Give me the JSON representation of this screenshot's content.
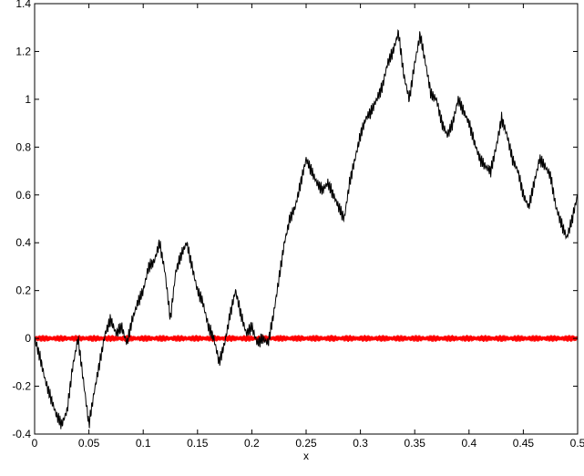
{
  "chart_data": {
    "type": "line",
    "title": "",
    "xlabel": "x",
    "ylabel": "",
    "xlim": [
      0,
      0.5
    ],
    "ylim": [
      -0.4,
      1.4
    ],
    "grid": false,
    "xticks": [
      0,
      0.05,
      0.1,
      0.15,
      0.2,
      0.25,
      0.3,
      0.35,
      0.4,
      0.45,
      0.5
    ],
    "xtick_labels": [
      "0",
      "0.05",
      "0.1",
      "0.15",
      "0.2",
      "0.25",
      "0.3",
      "0.35",
      "0.4",
      "0.45",
      "0.5"
    ],
    "yticks": [
      -0.4,
      -0.2,
      0,
      0.2,
      0.4,
      0.6,
      0.8,
      1,
      1.2,
      1.4
    ],
    "ytick_labels": [
      "-0.4",
      "-0.2",
      "0",
      "0.2",
      "0.4",
      "0.6",
      "0.8",
      "1",
      "1.2",
      "1.4"
    ],
    "series": [
      {
        "color": "#000000",
        "points": [
          [
            0.0,
            0.0
          ],
          [
            0.005,
            -0.08
          ],
          [
            0.01,
            -0.18
          ],
          [
            0.015,
            -0.25
          ],
          [
            0.02,
            -0.32
          ],
          [
            0.025,
            -0.36
          ],
          [
            0.03,
            -0.3
          ],
          [
            0.035,
            -0.12
          ],
          [
            0.04,
            0.0
          ],
          [
            0.045,
            -0.18
          ],
          [
            0.05,
            -0.36
          ],
          [
            0.055,
            -0.22
          ],
          [
            0.06,
            -0.1
          ],
          [
            0.065,
            0.02
          ],
          [
            0.07,
            0.08
          ],
          [
            0.075,
            0.02
          ],
          [
            0.08,
            0.05
          ],
          [
            0.085,
            -0.02
          ],
          [
            0.09,
            0.08
          ],
          [
            0.095,
            0.15
          ],
          [
            0.1,
            0.2
          ],
          [
            0.105,
            0.3
          ],
          [
            0.11,
            0.32
          ],
          [
            0.115,
            0.4
          ],
          [
            0.12,
            0.28
          ],
          [
            0.125,
            0.08
          ],
          [
            0.13,
            0.28
          ],
          [
            0.135,
            0.35
          ],
          [
            0.14,
            0.4
          ],
          [
            0.145,
            0.3
          ],
          [
            0.15,
            0.2
          ],
          [
            0.155,
            0.15
          ],
          [
            0.16,
            0.05
          ],
          [
            0.165,
            0.0
          ],
          [
            0.17,
            -0.1
          ],
          [
            0.175,
            -0.02
          ],
          [
            0.18,
            0.1
          ],
          [
            0.185,
            0.2
          ],
          [
            0.19,
            0.1
          ],
          [
            0.195,
            0.02
          ],
          [
            0.2,
            0.05
          ],
          [
            0.205,
            -0.02
          ],
          [
            0.21,
            0.0
          ],
          [
            0.215,
            -0.02
          ],
          [
            0.22,
            0.1
          ],
          [
            0.225,
            0.25
          ],
          [
            0.23,
            0.4
          ],
          [
            0.235,
            0.5
          ],
          [
            0.24,
            0.55
          ],
          [
            0.245,
            0.65
          ],
          [
            0.25,
            0.75
          ],
          [
            0.255,
            0.7
          ],
          [
            0.26,
            0.65
          ],
          [
            0.265,
            0.62
          ],
          [
            0.27,
            0.65
          ],
          [
            0.275,
            0.6
          ],
          [
            0.28,
            0.55
          ],
          [
            0.285,
            0.5
          ],
          [
            0.29,
            0.65
          ],
          [
            0.295,
            0.75
          ],
          [
            0.3,
            0.85
          ],
          [
            0.305,
            0.92
          ],
          [
            0.31,
            0.95
          ],
          [
            0.315,
            1.0
          ],
          [
            0.32,
            1.05
          ],
          [
            0.325,
            1.15
          ],
          [
            0.33,
            1.2
          ],
          [
            0.335,
            1.28
          ],
          [
            0.34,
            1.1
          ],
          [
            0.345,
            1.0
          ],
          [
            0.35,
            1.15
          ],
          [
            0.355,
            1.27
          ],
          [
            0.36,
            1.15
          ],
          [
            0.365,
            1.02
          ],
          [
            0.37,
            1.0
          ],
          [
            0.375,
            0.9
          ],
          [
            0.38,
            0.85
          ],
          [
            0.385,
            0.9
          ],
          [
            0.39,
            1.0
          ],
          [
            0.395,
            0.95
          ],
          [
            0.4,
            0.9
          ],
          [
            0.405,
            0.82
          ],
          [
            0.41,
            0.75
          ],
          [
            0.415,
            0.72
          ],
          [
            0.42,
            0.7
          ],
          [
            0.425,
            0.8
          ],
          [
            0.43,
            0.92
          ],
          [
            0.435,
            0.85
          ],
          [
            0.44,
            0.75
          ],
          [
            0.445,
            0.7
          ],
          [
            0.45,
            0.6
          ],
          [
            0.455,
            0.55
          ],
          [
            0.46,
            0.65
          ],
          [
            0.465,
            0.75
          ],
          [
            0.47,
            0.72
          ],
          [
            0.475,
            0.68
          ],
          [
            0.48,
            0.55
          ],
          [
            0.485,
            0.48
          ],
          [
            0.49,
            0.42
          ],
          [
            0.495,
            0.5
          ],
          [
            0.5,
            0.6
          ]
        ]
      },
      {
        "color": "#ff0000",
        "points": [
          [
            0.0,
            0.0
          ],
          [
            0.5,
            0.0
          ]
        ],
        "envelope_amplitude": 0.015
      }
    ]
  }
}
